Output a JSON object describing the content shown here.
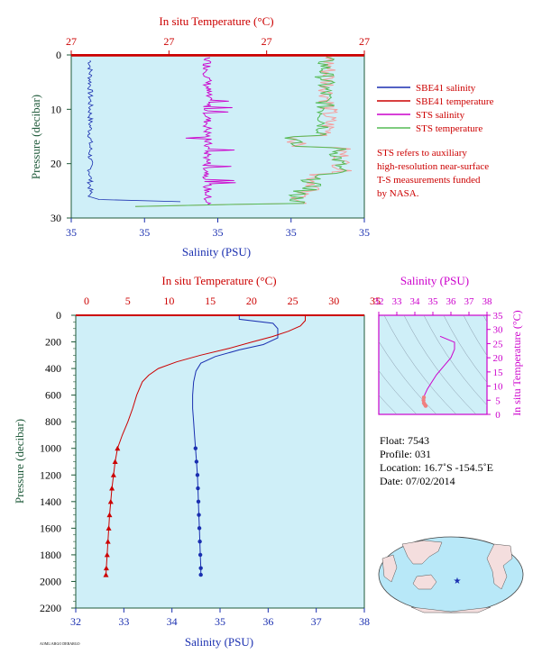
{
  "colors": {
    "plot_bg": "#cfeff8",
    "blue": "#1a2fb0",
    "red": "#cc0000",
    "magenta": "#cc00cc",
    "green": "#1f5a3a",
    "sts_temp": "#55bb55",
    "sts_temp_pink": "#f4a0a0",
    "land": "#f4dede",
    "ocean": "#b8e8f8"
  },
  "top_chart": {
    "top_title": "In situ Temperature (°C)",
    "bottom_title": "Salinity (PSU)",
    "y_title": "Pressure (decibar)",
    "top_ticks": [
      "27",
      "27",
      "27",
      "27"
    ],
    "bottom_ticks": [
      "35",
      "35",
      "35",
      "35",
      "35"
    ],
    "y_ticks": [
      "0",
      "10",
      "20",
      "30"
    ]
  },
  "legend": {
    "items": [
      {
        "label": "SBE41 salinity",
        "color": "#1a2fb0"
      },
      {
        "label": "SBE41 temperature",
        "color": "#cc0000"
      },
      {
        "label": "STS salinity",
        "color": "#cc00cc"
      },
      {
        "label": "STS temperature",
        "color": "#55bb55"
      }
    ],
    "note_lines": [
      "STS refers to auxiliary",
      "high-resolution near-surface",
      "T-S measurements funded",
      "by NASA."
    ]
  },
  "main_chart": {
    "top_title": "In situ Temperature (°C)",
    "bottom_title": "Salinity (PSU)",
    "y_title": "Pressure (decibar)",
    "top_ticks": [
      "0",
      "5",
      "10",
      "15",
      "20",
      "25",
      "30",
      "35"
    ],
    "bottom_ticks": [
      "32",
      "33",
      "34",
      "35",
      "36",
      "37",
      "38"
    ],
    "y_ticks": [
      "0",
      "200",
      "400",
      "600",
      "800",
      "1000",
      "1200",
      "1400",
      "1600",
      "1800",
      "2000",
      "2200"
    ],
    "footer_tag": "AOML/ARGO DEBARGO"
  },
  "ts_chart": {
    "top_title": "Salinity (PSU)",
    "right_title": "In situ Temperature (°C)",
    "top_ticks": [
      "32",
      "33",
      "34",
      "35",
      "36",
      "37",
      "38"
    ],
    "right_ticks": [
      "0",
      "5",
      "10",
      "15",
      "20",
      "25",
      "30",
      "35"
    ]
  },
  "info": {
    "float": "Float:  7543",
    "profile": "Profile:  031",
    "location": "Location:  16.7˚S  -154.5˚E",
    "date": "Date:  07/02/2014"
  },
  "chart_data": [
    {
      "type": "line",
      "title": "",
      "xlabel": "Salinity (PSU)",
      "x2label": "In situ Temperature (°C)",
      "ylabel": "Pressure (decibar)",
      "ylim": [
        0,
        30
      ],
      "series": [
        {
          "name": "SBE41 salinity",
          "color": "#1a2fb0"
        },
        {
          "name": "SBE41 temperature",
          "color": "#cc0000"
        },
        {
          "name": "STS salinity",
          "color": "#cc00cc"
        },
        {
          "name": "STS temperature",
          "color": "#55bb55"
        }
      ]
    },
    {
      "type": "line",
      "title": "",
      "xlabel": "Salinity (PSU)",
      "x2label": "In situ Temperature (°C)",
      "ylabel": "Pressure (decibar)",
      "xlim": [
        32,
        38
      ],
      "x2lim": [
        0,
        35
      ],
      "ylim": [
        2200,
        0
      ],
      "series": [
        {
          "name": "Salinity",
          "axis": "bottom",
          "color": "#1a2fb0",
          "points": [
            [
              35.4,
              0
            ],
            [
              35.4,
              30
            ],
            [
              36.1,
              60
            ],
            [
              36.2,
              100
            ],
            [
              36.2,
              150
            ],
            [
              36.2,
              170
            ],
            [
              35.9,
              220
            ],
            [
              35.4,
              260
            ],
            [
              34.9,
              310
            ],
            [
              34.6,
              360
            ],
            [
              34.5,
              420
            ],
            [
              34.45,
              500
            ],
            [
              34.43,
              600
            ],
            [
              34.43,
              700
            ],
            [
              34.45,
              800
            ],
            [
              34.47,
              900
            ],
            [
              34.49,
              1000
            ],
            [
              34.51,
              1100
            ],
            [
              34.53,
              1200
            ],
            [
              34.54,
              1300
            ],
            [
              34.55,
              1400
            ],
            [
              34.56,
              1500
            ],
            [
              34.57,
              1600
            ],
            [
              34.58,
              1700
            ],
            [
              34.59,
              1800
            ],
            [
              34.6,
              1900
            ],
            [
              34.6,
              1950
            ]
          ]
        },
        {
          "name": "Temperature",
          "axis": "top",
          "color": "#cc0000",
          "points": [
            [
              27.6,
              0
            ],
            [
              27.6,
              40
            ],
            [
              27.0,
              80
            ],
            [
              25.5,
              120
            ],
            [
              23.5,
              160
            ],
            [
              21.0,
              200
            ],
            [
              18.0,
              250
            ],
            [
              14.5,
              300
            ],
            [
              11.5,
              350
            ],
            [
              9.2,
              400
            ],
            [
              8.0,
              450
            ],
            [
              7.2,
              500
            ],
            [
              6.5,
              600
            ],
            [
              6.0,
              700
            ],
            [
              5.4,
              800
            ],
            [
              4.7,
              900
            ],
            [
              4.1,
              1000
            ],
            [
              3.8,
              1100
            ],
            [
              3.6,
              1200
            ],
            [
              3.4,
              1300
            ],
            [
              3.25,
              1400
            ],
            [
              3.1,
              1500
            ],
            [
              3.0,
              1600
            ],
            [
              2.9,
              1700
            ],
            [
              2.8,
              1800
            ],
            [
              2.7,
              1900
            ],
            [
              2.65,
              1950
            ]
          ]
        }
      ]
    },
    {
      "type": "scatter",
      "title": "",
      "xlabel": "Salinity (PSU)",
      "ylabel": "In situ Temperature (°C)",
      "xlim": [
        32,
        38
      ],
      "ylim": [
        0,
        35
      ],
      "series": [
        {
          "name": "T-S",
          "color": "#cc0000",
          "points": [
            [
              35.4,
              27.6
            ],
            [
              36.2,
              25.5
            ],
            [
              36.2,
              23
            ],
            [
              36.0,
              20
            ],
            [
              35.6,
              17
            ],
            [
              35.2,
              14
            ],
            [
              34.9,
              11
            ],
            [
              34.7,
              9
            ],
            [
              34.55,
              7
            ],
            [
              34.5,
              6
            ],
            [
              34.48,
              5
            ],
            [
              34.5,
              4
            ],
            [
              34.55,
              3.5
            ],
            [
              34.6,
              3
            ]
          ]
        }
      ]
    }
  ]
}
